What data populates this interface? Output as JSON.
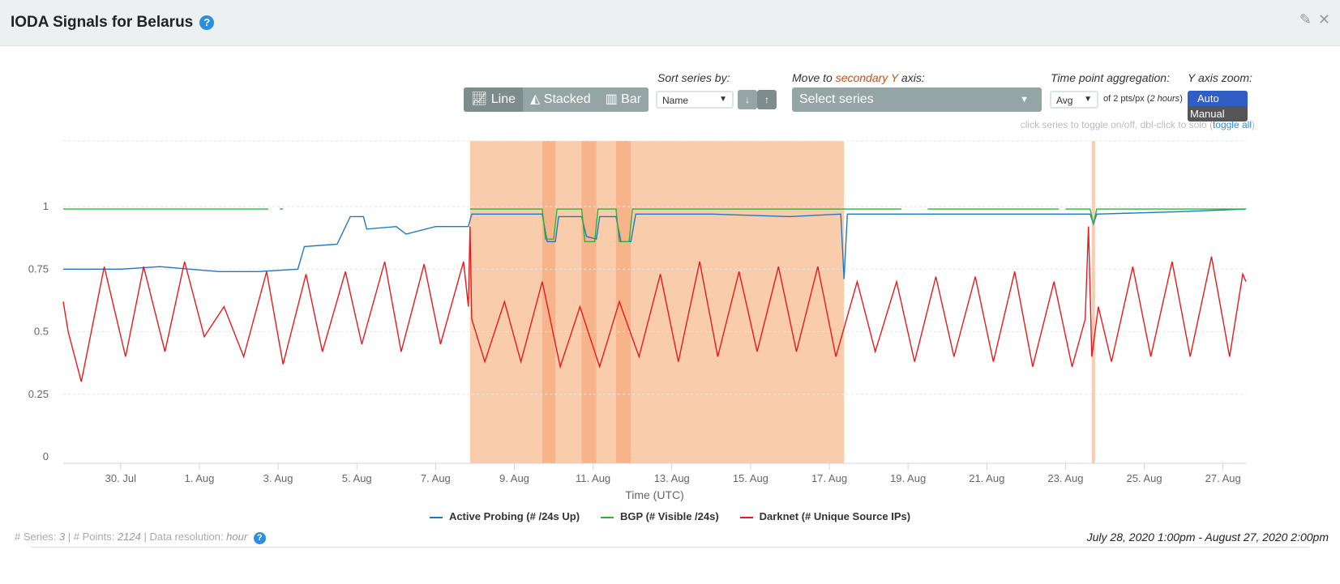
{
  "header": {
    "title": "IODA Signals for Belarus",
    "help_icon": "question-circle-icon",
    "edit_icon": "edit-icon",
    "close_icon": "close-icon"
  },
  "controls": {
    "chart_types": [
      {
        "label": "Line",
        "icon": "line-chart-icon",
        "active": true
      },
      {
        "label": "Stacked",
        "icon": "area-chart-icon",
        "active": false
      },
      {
        "label": "Bar",
        "icon": "bar-chart-icon",
        "active": false
      }
    ],
    "sort_label": "Sort series by:",
    "sort_value": "Name",
    "sort_down": "↓",
    "sort_up": "↑",
    "secondary_label_pre": "Move to ",
    "secondary_label_hl": "secondary Y",
    "secondary_label_post": " axis:",
    "secondary_placeholder": "Select series",
    "agg_label": "Time point aggregation:",
    "agg_value": "Avg",
    "agg_note_pre": "of 2 pts/px (",
    "agg_note_i": "2 hours",
    "agg_note_post": ")",
    "zoom_label": "Y axis zoom:",
    "zoom_auto": "Auto",
    "zoom_manual": "Manual",
    "hint": "click series to toggle on/off, dbl-click to solo (",
    "hint_link": "toggle all",
    "hint_end": ")"
  },
  "footer": {
    "series_label": "# Series: ",
    "series": "3",
    "points_label": " | # Points: ",
    "points": "2124",
    "res_label": " | Data resolution: ",
    "res": "hour",
    "range": "July 28, 2020 1:00pm - August 27, 2020 2:00pm"
  },
  "chart_data": {
    "type": "line",
    "xlabel": "Time (UTC)",
    "ylabel": "",
    "xlim": [
      "2020-07-28 13:00",
      "2020-08-27 14:00"
    ],
    "ylim": [
      0,
      1.2
    ],
    "yticks": [
      0,
      0.25,
      0.5,
      0.75,
      1
    ],
    "ytick_labels": [
      "0",
      "0.25",
      "0.5",
      "0.75",
      "1"
    ],
    "xticks": [
      "2020-07-30",
      "2020-08-01",
      "2020-08-03",
      "2020-08-05",
      "2020-08-07",
      "2020-08-09",
      "2020-08-11",
      "2020-08-13",
      "2020-08-15",
      "2020-08-17",
      "2020-08-19",
      "2020-08-21",
      "2020-08-23",
      "2020-08-25",
      "2020-08-27"
    ],
    "xtick_labels": [
      "30. Jul",
      "1. Aug",
      "3. Aug",
      "5. Aug",
      "7. Aug",
      "9. Aug",
      "11. Aug",
      "13. Aug",
      "15. Aug",
      "17. Aug",
      "19. Aug",
      "21. Aug",
      "23. Aug",
      "25. Aug",
      "27. Aug"
    ],
    "grid": true,
    "legend": "bottom",
    "outage_bands": [
      {
        "from": "2020-08-07 21:00",
        "to": "2020-08-17 09:00",
        "color": "#f9ccac"
      },
      {
        "from": "2020-08-09 17:00",
        "to": "2020-08-10 01:00",
        "color": "#f7b48a"
      },
      {
        "from": "2020-08-10 17:00",
        "to": "2020-08-11 02:00",
        "color": "#f7b48a"
      },
      {
        "from": "2020-08-11 14:00",
        "to": "2020-08-11 23:00",
        "color": "#f7b48a"
      },
      {
        "from": "2020-08-23 16:00",
        "to": "2020-08-23 18:00",
        "color": "#f9ccac"
      }
    ],
    "series": [
      {
        "name": "Active Probing (# /24s Up)",
        "color": "#1f78c1",
        "points": [
          [
            "2020-07-28 13:00",
            0.75
          ],
          [
            "2020-07-30 00:00",
            0.75
          ],
          [
            "2020-07-31 00:00",
            0.76
          ],
          [
            "2020-08-01 12:00",
            0.74
          ],
          [
            "2020-08-02 12:00",
            0.74
          ],
          [
            "2020-08-03 12:00",
            0.75
          ],
          [
            "2020-08-03 16:00",
            0.84
          ],
          [
            "2020-08-04 12:00",
            0.85
          ],
          [
            "2020-08-04 20:00",
            0.96
          ],
          [
            "2020-08-05 04:00",
            0.96
          ],
          [
            "2020-08-05 06:00",
            0.91
          ],
          [
            "2020-08-06 00:00",
            0.92
          ],
          [
            "2020-08-06 06:00",
            0.89
          ],
          [
            "2020-08-07 00:00",
            0.92
          ],
          [
            "2020-08-07 20:00",
            0.92
          ],
          [
            "2020-08-07 22:00",
            0.97
          ],
          [
            "2020-08-09 17:00",
            0.97
          ],
          [
            "2020-08-09 20:00",
            0.86
          ],
          [
            "2020-08-10 01:00",
            0.86
          ],
          [
            "2020-08-10 03:00",
            0.96
          ],
          [
            "2020-08-10 17:00",
            0.96
          ],
          [
            "2020-08-10 20:00",
            0.88
          ],
          [
            "2020-08-11 02:00",
            0.87
          ],
          [
            "2020-08-11 04:00",
            0.96
          ],
          [
            "2020-08-11 14:00",
            0.96
          ],
          [
            "2020-08-11 17:00",
            0.86
          ],
          [
            "2020-08-11 23:00",
            0.86
          ],
          [
            "2020-08-12 02:00",
            0.97
          ],
          [
            "2020-08-14 00:00",
            0.97
          ],
          [
            "2020-08-16 00:00",
            0.96
          ],
          [
            "2020-08-17 07:00",
            0.97
          ],
          [
            "2020-08-17 09:00",
            0.71
          ],
          [
            "2020-08-17 11:00",
            0.97
          ],
          [
            "2020-08-20 00:00",
            0.97
          ],
          [
            "2020-08-23 15:00",
            0.97
          ],
          [
            "2020-08-23 17:00",
            0.93
          ],
          [
            "2020-08-23 19:00",
            0.97
          ],
          [
            "2020-08-26 00:00",
            0.98
          ],
          [
            "2020-08-27 14:00",
            0.99
          ]
        ]
      },
      {
        "name": "BGP (# Visible /24s)",
        "color": "#2ab33a",
        "points": [
          [
            "2020-07-28 13:00",
            0.99
          ],
          [
            "2020-08-02 18:00",
            0.99
          ],
          null,
          [
            "2020-08-03 01:00",
            0.99
          ],
          [
            "2020-08-03 03:00",
            0.99
          ],
          null,
          [
            "2020-08-07 21:00",
            0.99
          ],
          [
            "2020-08-09 17:00",
            0.99
          ],
          [
            "2020-08-09 19:00",
            0.87
          ],
          [
            "2020-08-10 00:00",
            0.87
          ],
          [
            "2020-08-10 02:00",
            0.99
          ],
          [
            "2020-08-10 17:00",
            0.99
          ],
          [
            "2020-08-10 19:00",
            0.86
          ],
          [
            "2020-08-11 01:00",
            0.86
          ],
          [
            "2020-08-11 03:00",
            0.99
          ],
          [
            "2020-08-11 14:00",
            0.99
          ],
          [
            "2020-08-11 16:00",
            0.86
          ],
          [
            "2020-08-11 22:00",
            0.86
          ],
          [
            "2020-08-12 00:00",
            0.99
          ],
          [
            "2020-08-18 20:00",
            0.99
          ],
          null,
          [
            "2020-08-19 12:00",
            0.99
          ],
          [
            "2020-08-22 20:00",
            0.99
          ],
          null,
          [
            "2020-08-23 00:00",
            0.99
          ],
          [
            "2020-08-23 15:00",
            0.99
          ],
          [
            "2020-08-23 17:00",
            0.93
          ],
          [
            "2020-08-23 19:00",
            0.99
          ],
          [
            "2020-08-27 14:00",
            0.99
          ]
        ]
      },
      {
        "name": "Darknet (# Unique Source IPs)",
        "color": "#e8191c",
        "points": [
          [
            "2020-07-28 13:00",
            0.62
          ],
          [
            "2020-07-28 16:00",
            0.5
          ],
          [
            "2020-07-29 00:00",
            0.3
          ],
          [
            "2020-07-29 14:00",
            0.76
          ],
          [
            "2020-07-30 03:00",
            0.4
          ],
          [
            "2020-07-30 14:00",
            0.76
          ],
          [
            "2020-07-31 03:00",
            0.42
          ],
          [
            "2020-07-31 15:00",
            0.78
          ],
          [
            "2020-08-01 03:00",
            0.48
          ],
          [
            "2020-08-01 15:00",
            0.6
          ],
          [
            "2020-08-02 03:00",
            0.4
          ],
          [
            "2020-08-02 17:00",
            0.74
          ],
          [
            "2020-08-03 03:00",
            0.37
          ],
          [
            "2020-08-03 17:00",
            0.73
          ],
          [
            "2020-08-04 03:00",
            0.42
          ],
          [
            "2020-08-04 17:00",
            0.74
          ],
          [
            "2020-08-05 03:00",
            0.45
          ],
          [
            "2020-08-05 17:00",
            0.78
          ],
          [
            "2020-08-06 03:00",
            0.42
          ],
          [
            "2020-08-06 17:00",
            0.77
          ],
          [
            "2020-08-07 03:00",
            0.45
          ],
          [
            "2020-08-07 17:00",
            0.78
          ],
          [
            "2020-08-07 20:00",
            0.6
          ],
          [
            "2020-08-07 21:00",
            0.92
          ],
          [
            "2020-08-07 22:00",
            0.55
          ],
          [
            "2020-08-08 06:00",
            0.38
          ],
          [
            "2020-08-08 18:00",
            0.62
          ],
          [
            "2020-08-09 04:00",
            0.38
          ],
          [
            "2020-08-09 17:00",
            0.7
          ],
          [
            "2020-08-10 04:00",
            0.36
          ],
          [
            "2020-08-10 16:00",
            0.6
          ],
          [
            "2020-08-11 04:00",
            0.36
          ],
          [
            "2020-08-11 16:00",
            0.62
          ],
          [
            "2020-08-12 04:00",
            0.4
          ],
          [
            "2020-08-12 17:00",
            0.73
          ],
          [
            "2020-08-13 04:00",
            0.38
          ],
          [
            "2020-08-13 17:00",
            0.78
          ],
          [
            "2020-08-14 04:00",
            0.4
          ],
          [
            "2020-08-14 17:00",
            0.74
          ],
          [
            "2020-08-15 04:00",
            0.42
          ],
          [
            "2020-08-15 17:00",
            0.76
          ],
          [
            "2020-08-16 04:00",
            0.42
          ],
          [
            "2020-08-16 17:00",
            0.76
          ],
          [
            "2020-08-17 04:00",
            0.4
          ],
          [
            "2020-08-17 17:00",
            0.7
          ],
          [
            "2020-08-18 04:00",
            0.42
          ],
          [
            "2020-08-18 17:00",
            0.7
          ],
          [
            "2020-08-19 04:00",
            0.38
          ],
          [
            "2020-08-19 17:00",
            0.72
          ],
          [
            "2020-08-20 04:00",
            0.4
          ],
          [
            "2020-08-20 17:00",
            0.72
          ],
          [
            "2020-08-21 04:00",
            0.38
          ],
          [
            "2020-08-21 17:00",
            0.74
          ],
          [
            "2020-08-22 04:00",
            0.36
          ],
          [
            "2020-08-22 17:00",
            0.7
          ],
          [
            "2020-08-23 04:00",
            0.36
          ],
          [
            "2020-08-23 12:00",
            0.55
          ],
          [
            "2020-08-23 14:00",
            0.92
          ],
          [
            "2020-08-23 16:00",
            0.4
          ],
          [
            "2020-08-23 20:00",
            0.6
          ],
          [
            "2020-08-24 04:00",
            0.38
          ],
          [
            "2020-08-24 17:00",
            0.76
          ],
          [
            "2020-08-25 04:00",
            0.4
          ],
          [
            "2020-08-25 17:00",
            0.78
          ],
          [
            "2020-08-26 04:00",
            0.4
          ],
          [
            "2020-08-26 17:00",
            0.8
          ],
          [
            "2020-08-27 04:00",
            0.4
          ],
          [
            "2020-08-27 12:00",
            0.73
          ],
          [
            "2020-08-27 14:00",
            0.7
          ]
        ]
      }
    ]
  }
}
